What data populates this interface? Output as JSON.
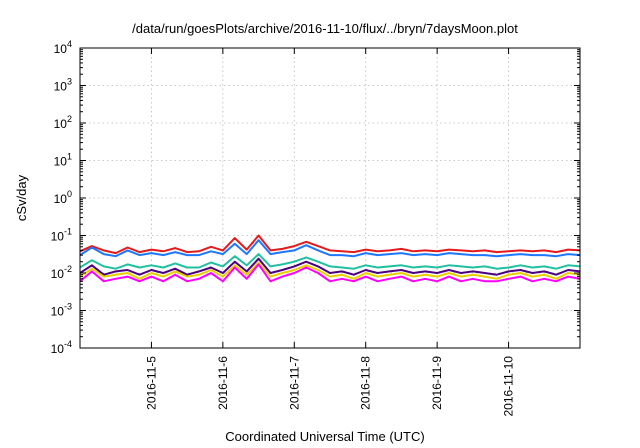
{
  "chart_data": {
    "type": "line",
    "title": "/data/run/goesPlots/archive/2016-11-10/flux/../bryn/7daysMoon.plot",
    "xlabel": "Coordinated Universal Time (UTC)",
    "ylabel": "cSv/day",
    "yscale": "log",
    "ylim": [
      0.0001,
      10000
    ],
    "y_ticks": [
      {
        "value": 0.0001,
        "mantissa": "10",
        "exp": "-4"
      },
      {
        "value": 0.001,
        "mantissa": "10",
        "exp": "-3"
      },
      {
        "value": 0.01,
        "mantissa": "10",
        "exp": "-2"
      },
      {
        "value": 0.1,
        "mantissa": "10",
        "exp": "-1"
      },
      {
        "value": 1,
        "mantissa": "10",
        "exp": "0"
      },
      {
        "value": 10,
        "mantissa": "10",
        "exp": "1"
      },
      {
        "value": 100,
        "mantissa": "10",
        "exp": "2"
      },
      {
        "value": 1000,
        "mantissa": "10",
        "exp": "3"
      },
      {
        "value": 10000,
        "mantissa": "10",
        "exp": "4"
      }
    ],
    "xlim": [
      "2016-11-04 00:00",
      "2016-11-11 00:00"
    ],
    "x_ticks": [
      {
        "value": "2016-11-05",
        "label": "2016-11-5"
      },
      {
        "value": "2016-11-06",
        "label": "2016-11-6"
      },
      {
        "value": "2016-11-07",
        "label": "2016-11-7"
      },
      {
        "value": "2016-11-08",
        "label": "2016-11-8"
      },
      {
        "value": "2016-11-09",
        "label": "2016-11-9"
      },
      {
        "value": "2016-11-10",
        "label": "2016-11-10"
      }
    ],
    "grid": true,
    "x": [
      "2016-11-04 00:00",
      "2016-11-04 04:00",
      "2016-11-04 08:00",
      "2016-11-04 12:00",
      "2016-11-04 16:00",
      "2016-11-04 20:00",
      "2016-11-05 00:00",
      "2016-11-05 04:00",
      "2016-11-05 08:00",
      "2016-11-05 12:00",
      "2016-11-05 16:00",
      "2016-11-05 20:00",
      "2016-11-06 00:00",
      "2016-11-06 04:00",
      "2016-11-06 08:00",
      "2016-11-06 12:00",
      "2016-11-06 16:00",
      "2016-11-06 20:00",
      "2016-11-07 00:00",
      "2016-11-07 04:00",
      "2016-11-07 08:00",
      "2016-11-07 12:00",
      "2016-11-07 16:00",
      "2016-11-07 20:00",
      "2016-11-08 00:00",
      "2016-11-08 04:00",
      "2016-11-08 08:00",
      "2016-11-08 12:00",
      "2016-11-08 16:00",
      "2016-11-08 20:00",
      "2016-11-09 00:00",
      "2016-11-09 04:00",
      "2016-11-09 08:00",
      "2016-11-09 12:00",
      "2016-11-09 16:00",
      "2016-11-09 20:00",
      "2016-11-10 00:00",
      "2016-11-10 04:00",
      "2016-11-10 08:00",
      "2016-11-10 12:00",
      "2016-11-10 16:00",
      "2016-11-10 20:00",
      "2016-11-11 00:00"
    ],
    "series": [
      {
        "color": "#e41a1c",
        "values": [
          0.038,
          0.052,
          0.04,
          0.034,
          0.048,
          0.036,
          0.042,
          0.038,
          0.046,
          0.036,
          0.038,
          0.05,
          0.04,
          0.085,
          0.042,
          0.1,
          0.04,
          0.044,
          0.052,
          0.068,
          0.052,
          0.04,
          0.038,
          0.036,
          0.042,
          0.038,
          0.04,
          0.044,
          0.038,
          0.04,
          0.038,
          0.042,
          0.04,
          0.038,
          0.04,
          0.036,
          0.038,
          0.04,
          0.038,
          0.04,
          0.036,
          0.042,
          0.04
        ]
      },
      {
        "color": "#1f77ff",
        "values": [
          0.03,
          0.048,
          0.032,
          0.028,
          0.04,
          0.03,
          0.034,
          0.03,
          0.036,
          0.03,
          0.03,
          0.038,
          0.032,
          0.06,
          0.032,
          0.075,
          0.032,
          0.036,
          0.04,
          0.055,
          0.04,
          0.03,
          0.03,
          0.028,
          0.034,
          0.03,
          0.032,
          0.034,
          0.03,
          0.032,
          0.03,
          0.034,
          0.032,
          0.03,
          0.03,
          0.028,
          0.03,
          0.032,
          0.03,
          0.03,
          0.028,
          0.032,
          0.03
        ]
      },
      {
        "color": "#20c0a0",
        "values": [
          0.014,
          0.022,
          0.015,
          0.013,
          0.017,
          0.014,
          0.016,
          0.014,
          0.018,
          0.014,
          0.014,
          0.019,
          0.015,
          0.028,
          0.016,
          0.032,
          0.015,
          0.017,
          0.02,
          0.026,
          0.02,
          0.015,
          0.014,
          0.013,
          0.016,
          0.014,
          0.015,
          0.016,
          0.014,
          0.015,
          0.014,
          0.016,
          0.015,
          0.014,
          0.015,
          0.013,
          0.014,
          0.016,
          0.014,
          0.015,
          0.013,
          0.016,
          0.015
        ]
      },
      {
        "color": "#4b0082",
        "values": [
          0.01,
          0.016,
          0.009,
          0.011,
          0.012,
          0.009,
          0.012,
          0.01,
          0.013,
          0.009,
          0.011,
          0.014,
          0.01,
          0.02,
          0.011,
          0.024,
          0.01,
          0.012,
          0.015,
          0.02,
          0.015,
          0.01,
          0.011,
          0.009,
          0.012,
          0.01,
          0.011,
          0.012,
          0.01,
          0.011,
          0.01,
          0.012,
          0.01,
          0.011,
          0.01,
          0.009,
          0.011,
          0.012,
          0.01,
          0.011,
          0.009,
          0.012,
          0.011
        ]
      },
      {
        "color": "#e8d000",
        "values": [
          0.008,
          0.013,
          0.008,
          0.009,
          0.01,
          0.007,
          0.01,
          0.008,
          0.011,
          0.008,
          0.009,
          0.012,
          0.008,
          0.016,
          0.009,
          0.019,
          0.008,
          0.01,
          0.012,
          0.016,
          0.012,
          0.008,
          0.009,
          0.007,
          0.01,
          0.008,
          0.009,
          0.01,
          0.008,
          0.009,
          0.008,
          0.01,
          0.008,
          0.009,
          0.008,
          0.007,
          0.009,
          0.01,
          0.008,
          0.009,
          0.007,
          0.01,
          0.009
        ]
      },
      {
        "color": "#ff00ff",
        "values": [
          0.006,
          0.011,
          0.006,
          0.007,
          0.008,
          0.006,
          0.008,
          0.006,
          0.009,
          0.006,
          0.007,
          0.01,
          0.006,
          0.014,
          0.007,
          0.017,
          0.006,
          0.008,
          0.01,
          0.014,
          0.01,
          0.006,
          0.007,
          0.006,
          0.008,
          0.006,
          0.007,
          0.008,
          0.006,
          0.007,
          0.006,
          0.008,
          0.006,
          0.007,
          0.006,
          0.006,
          0.007,
          0.008,
          0.006,
          0.007,
          0.006,
          0.008,
          0.007
        ]
      }
    ]
  }
}
